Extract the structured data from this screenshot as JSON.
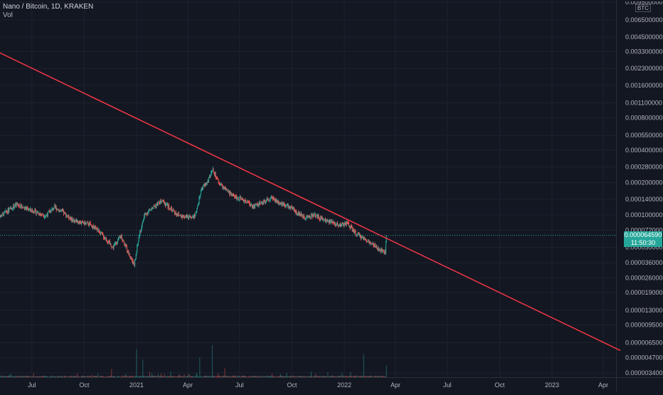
{
  "header": {
    "symbol_line": "Nano / Bitcoin, 1D, KRAKEN",
    "volume_label": "Vol"
  },
  "price_scale": {
    "unit": "BTC",
    "current_price_label": "0.000064590",
    "countdown_label": "11:50:30"
  },
  "colors": {
    "background": "#131722",
    "grid": "#1e222d",
    "up": "#26a69a",
    "down": "#ef5350",
    "trendline": "#f23645",
    "text": "#b2b5be"
  },
  "chart_data": {
    "type": "candlestick",
    "symbol": "Nano / Bitcoin",
    "interval": "1D",
    "exchange": "KRAKEN",
    "y_scale": "log",
    "y_tick_labels": [
      "0.009500000",
      "0.006500000",
      "0.004500000",
      "0.003300000",
      "0.002300000",
      "0.001600000",
      "0.001100000",
      "0.000800000",
      "0.000550000",
      "0.000400000",
      "0.000280000",
      "0.000200000",
      "0.000140000",
      "0.000100000",
      "0.000072000",
      "0.000050000",
      "0.000036000",
      "0.000026000",
      "0.000019000",
      "0.000013000",
      "0.000009500",
      "0.000006500",
      "0.000004700",
      "0.000003400"
    ],
    "x_tick_labels": [
      "Jul",
      "Oct",
      "2021",
      "Apr",
      "Jul",
      "Oct",
      "2022",
      "Apr",
      "Jul",
      "Oct",
      "2023",
      "Apr"
    ],
    "x_range": [
      "2020-05-01",
      "2023-05-01"
    ],
    "last_date": "2022-03-16",
    "close_path": [
      [
        "2020-05-01",
        9.2e-05
      ],
      [
        "2020-05-20",
        0.00011
      ],
      [
        "2020-06-05",
        0.000125
      ],
      [
        "2020-06-20",
        0.000115
      ],
      [
        "2020-07-05",
        0.000108
      ],
      [
        "2020-07-25",
        9.8e-05
      ],
      [
        "2020-08-10",
        0.000118
      ],
      [
        "2020-08-25",
        0.000105
      ],
      [
        "2020-09-10",
        9e-05
      ],
      [
        "2020-09-25",
        8.5e-05
      ],
      [
        "2020-10-10",
        8.2e-05
      ],
      [
        "2020-10-25",
        7.2e-05
      ],
      [
        "2020-11-10",
        5.8e-05
      ],
      [
        "2020-11-20",
        5e-05
      ],
      [
        "2020-12-05",
        6.4e-05
      ],
      [
        "2020-12-15",
        4.8e-05
      ],
      [
        "2020-12-28",
        3.4e-05
      ],
      [
        "2021-01-05",
        6.2e-05
      ],
      [
        "2021-01-15",
        0.0001
      ],
      [
        "2021-02-01",
        0.00012
      ],
      [
        "2021-02-15",
        0.000135
      ],
      [
        "2021-03-01",
        0.000115
      ],
      [
        "2021-03-15",
        0.0001
      ],
      [
        "2021-04-01",
        9.5e-05
      ],
      [
        "2021-04-15",
        0.0001
      ],
      [
        "2021-04-25",
        0.000175
      ],
      [
        "2021-05-05",
        0.0002
      ],
      [
        "2021-05-15",
        0.00026
      ],
      [
        "2021-05-25",
        0.0002
      ],
      [
        "2021-06-10",
        0.000165
      ],
      [
        "2021-06-25",
        0.000145
      ],
      [
        "2021-07-10",
        0.000135
      ],
      [
        "2021-07-25",
        0.00012
      ],
      [
        "2021-08-10",
        0.00013
      ],
      [
        "2021-08-25",
        0.000145
      ],
      [
        "2021-09-10",
        0.00013
      ],
      [
        "2021-09-25",
        0.00012
      ],
      [
        "2021-10-10",
        0.000105
      ],
      [
        "2021-10-25",
        9.5e-05
      ],
      [
        "2021-11-10",
        0.0001
      ],
      [
        "2021-11-25",
        9e-05
      ],
      [
        "2021-12-10",
        8.5e-05
      ],
      [
        "2021-12-25",
        8e-05
      ],
      [
        "2022-01-05",
        8.5e-05
      ],
      [
        "2022-01-20",
        6.8e-05
      ],
      [
        "2022-02-05",
        6e-05
      ],
      [
        "2022-02-20",
        5.3e-05
      ],
      [
        "2022-03-05",
        4.7e-05
      ],
      [
        "2022-03-14",
        4.6e-05
      ],
      [
        "2022-03-16",
        6.46e-05
      ]
    ],
    "volume_spikes": [
      [
        "2021-01-01",
        11000
      ],
      [
        "2021-01-12",
        7000
      ],
      [
        "2021-05-14",
        12500
      ],
      [
        "2021-04-22",
        7500
      ],
      [
        "2022-02-04",
        9000
      ],
      [
        "2022-03-16",
        4500
      ],
      [
        "2020-11-18",
        3200
      ],
      [
        "2021-06-05",
        3500
      ]
    ],
    "trendline": {
      "start": [
        "2020-05-01",
        0.0033
      ],
      "end": [
        "2023-05-01",
        5.5e-06
      ]
    }
  }
}
